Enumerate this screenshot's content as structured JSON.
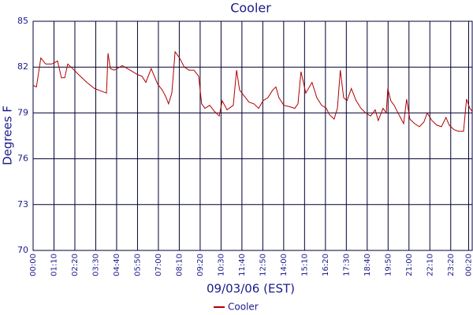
{
  "chart_data": {
    "type": "line",
    "title": "Cooler",
    "xlabel": "09/03/06 (EST)",
    "ylabel": "Degrees F",
    "x": [
      0,
      11,
      26,
      42,
      63,
      82,
      95,
      106,
      116,
      127,
      153,
      180,
      206,
      232,
      246,
      251,
      259,
      272,
      299,
      325,
      351,
      365,
      378,
      396,
      417,
      433,
      444,
      454,
      465,
      476,
      491,
      507,
      523,
      539,
      555,
      565,
      576,
      592,
      608,
      624,
      634,
      650,
      671,
      682,
      692,
      708,
      724,
      740,
      756,
      771,
      787,
      803,
      814,
      824,
      840,
      861,
      877,
      888,
      898,
      914,
      935,
      951,
      967,
      983,
      993,
      1009,
      1020,
      1030,
      1041,
      1052,
      1067,
      1083,
      1099,
      1115,
      1131,
      1147,
      1157,
      1173,
      1184,
      1189,
      1199,
      1210,
      1226,
      1242,
      1252,
      1263,
      1279,
      1295,
      1310,
      1321,
      1337,
      1353,
      1369,
      1384,
      1395,
      1411,
      1427,
      1443,
      1453,
      1464,
      1472
    ],
    "series": [
      {
        "name": "Cooler",
        "color": "#b00000",
        "values": [
          80.8,
          80.7,
          82.6,
          82.2,
          82.2,
          82.4,
          81.3,
          81.3,
          82.2,
          82.0,
          81.5,
          81.0,
          80.6,
          80.4,
          80.3,
          82.9,
          81.9,
          81.8,
          82.1,
          81.8,
          81.5,
          81.4,
          81.0,
          81.9,
          80.9,
          80.5,
          80.1,
          79.6,
          80.3,
          83.0,
          82.6,
          82.0,
          81.8,
          81.8,
          81.4,
          79.6,
          79.3,
          79.5,
          79.1,
          78.8,
          79.8,
          79.2,
          79.5,
          81.8,
          80.5,
          80.1,
          79.7,
          79.6,
          79.3,
          79.8,
          80.0,
          80.5,
          80.7,
          80.0,
          79.5,
          79.4,
          79.3,
          79.6,
          81.7,
          80.3,
          81.0,
          80.0,
          79.5,
          79.3,
          78.9,
          78.6,
          79.3,
          81.8,
          80.0,
          79.8,
          80.6,
          79.8,
          79.3,
          79.0,
          78.8,
          79.2,
          78.5,
          79.3,
          79.0,
          80.6,
          79.8,
          79.5,
          78.9,
          78.3,
          79.9,
          78.6,
          78.3,
          78.1,
          78.4,
          79.0,
          78.5,
          78.2,
          78.1,
          78.7,
          78.2,
          77.9,
          77.8,
          77.8,
          79.9,
          79.3,
          79.1
        ]
      }
    ],
    "xlim": [
      0,
      1472
    ],
    "xticks": [
      {
        "value": 0,
        "label": "00:00"
      },
      {
        "value": 70,
        "label": "01:10"
      },
      {
        "value": 140,
        "label": "02:20"
      },
      {
        "value": 210,
        "label": "03:30"
      },
      {
        "value": 280,
        "label": "04:40"
      },
      {
        "value": 350,
        "label": "05:50"
      },
      {
        "value": 420,
        "label": "07:00"
      },
      {
        "value": 490,
        "label": "08:10"
      },
      {
        "value": 560,
        "label": "09:20"
      },
      {
        "value": 630,
        "label": "10:30"
      },
      {
        "value": 700,
        "label": "11:40"
      },
      {
        "value": 770,
        "label": "12:50"
      },
      {
        "value": 840,
        "label": "14:00"
      },
      {
        "value": 910,
        "label": "15:10"
      },
      {
        "value": 980,
        "label": "16:20"
      },
      {
        "value": 1050,
        "label": "17:30"
      },
      {
        "value": 1120,
        "label": "18:40"
      },
      {
        "value": 1190,
        "label": "19:50"
      },
      {
        "value": 1260,
        "label": "21:00"
      },
      {
        "value": 1330,
        "label": "22:10"
      },
      {
        "value": 1400,
        "label": "23:20"
      },
      {
        "value": 1460,
        "label": "00:20"
      }
    ],
    "ylim": [
      70,
      85
    ],
    "yticks": [
      70,
      73,
      76,
      79,
      82,
      85
    ],
    "grid": true
  }
}
